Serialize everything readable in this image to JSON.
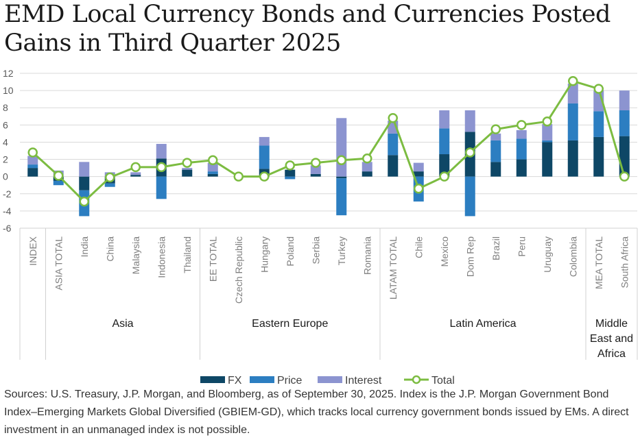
{
  "title": {
    "line1": "EMD Local Currency Bonds and Currencies Posted",
    "line2": "Gains in Third Quarter 2025"
  },
  "footer": {
    "sources": "Sources: U.S. Treasury, J.P. Morgan, and Bloomberg, as of September 30, 2025. Index is the J.P. Morgan Government Bond Index–Emerging Markets Global Diversified (GBIEM-GD), which tracks local currency government bonds issued by EMs. A direct investment in an unmanaged index is not possible."
  },
  "colors": {
    "fx": "#0e4766",
    "price": "#2c7ec1",
    "interest": "#8c94d0",
    "total": "#7cbc41",
    "grid": "#d9d9d9",
    "axis_text": "#595959"
  },
  "chart_data": {
    "type": "bar",
    "stacked": true,
    "categories": [
      "INDEX",
      "ASIA TOTAL",
      "India",
      "China",
      "Malaysia",
      "Indonesia",
      "Thailand",
      "EE TOTAL",
      "Czech Republic",
      "Hungary",
      "Poland",
      "Serbia",
      "Turkey",
      "Romania",
      "LATAM TOTAL",
      "Chile",
      "Mexico",
      "Dom Rep",
      "Brazil",
      "Peru",
      "Uruguay",
      "Colombia",
      "MEA TOTAL",
      "South Africa"
    ],
    "groups": [
      {
        "label": "",
        "from": 0,
        "to": 0
      },
      {
        "label": "Asia",
        "from": 1,
        "to": 6
      },
      {
        "label": "Eastern Europe",
        "from": 7,
        "to": 13
      },
      {
        "label": "Latin America",
        "from": 14,
        "to": 21
      },
      {
        "label": "Middle East and Africa",
        "from": 22,
        "to": 23
      }
    ],
    "ylim": [
      -6,
      12
    ],
    "yticks": [
      -6,
      -4,
      -2,
      0,
      2,
      4,
      6,
      8,
      10,
      12
    ],
    "grid": true,
    "legend_position": "bottom",
    "series": [
      {
        "name": "FX",
        "kind": "bar",
        "values": [
          1.0,
          -0.5,
          -1.6,
          -0.8,
          0.2,
          2.1,
          0.8,
          0.3,
          0.0,
          0.9,
          0.8,
          0.3,
          -0.2,
          0.6,
          2.5,
          0.6,
          2.6,
          5.2,
          1.7,
          2.0,
          4.0,
          4.2,
          4.6,
          4.7
        ]
      },
      {
        "name": "Price",
        "kind": "bar",
        "values": [
          0.4,
          -0.5,
          -3.0,
          -0.4,
          0.0,
          -2.6,
          0.0,
          0.3,
          0.0,
          2.7,
          -0.3,
          0.0,
          -4.3,
          0.0,
          2.5,
          -2.9,
          3.0,
          -4.6,
          2.5,
          2.4,
          0.2,
          4.3,
          3.0,
          3.0
        ]
      },
      {
        "name": "Interest",
        "kind": "bar",
        "values": [
          1.0,
          0.7,
          1.7,
          0.5,
          0.3,
          1.7,
          0.2,
          1.0,
          0.0,
          1.0,
          0.0,
          1.0,
          6.8,
          1.1,
          1.5,
          1.0,
          2.1,
          2.5,
          0.8,
          1.0,
          1.9,
          2.3,
          2.4,
          2.3
        ]
      },
      {
        "name": "Total",
        "kind": "line",
        "values": [
          2.8,
          0.1,
          -2.9,
          -0.1,
          1.1,
          1.1,
          1.6,
          1.9,
          0.0,
          0.0,
          1.3,
          1.6,
          1.9,
          2.1,
          6.8,
          -1.4,
          0.0,
          2.8,
          5.5,
          6.0,
          6.4,
          11.1,
          10.2,
          0.0
        ]
      }
    ]
  }
}
